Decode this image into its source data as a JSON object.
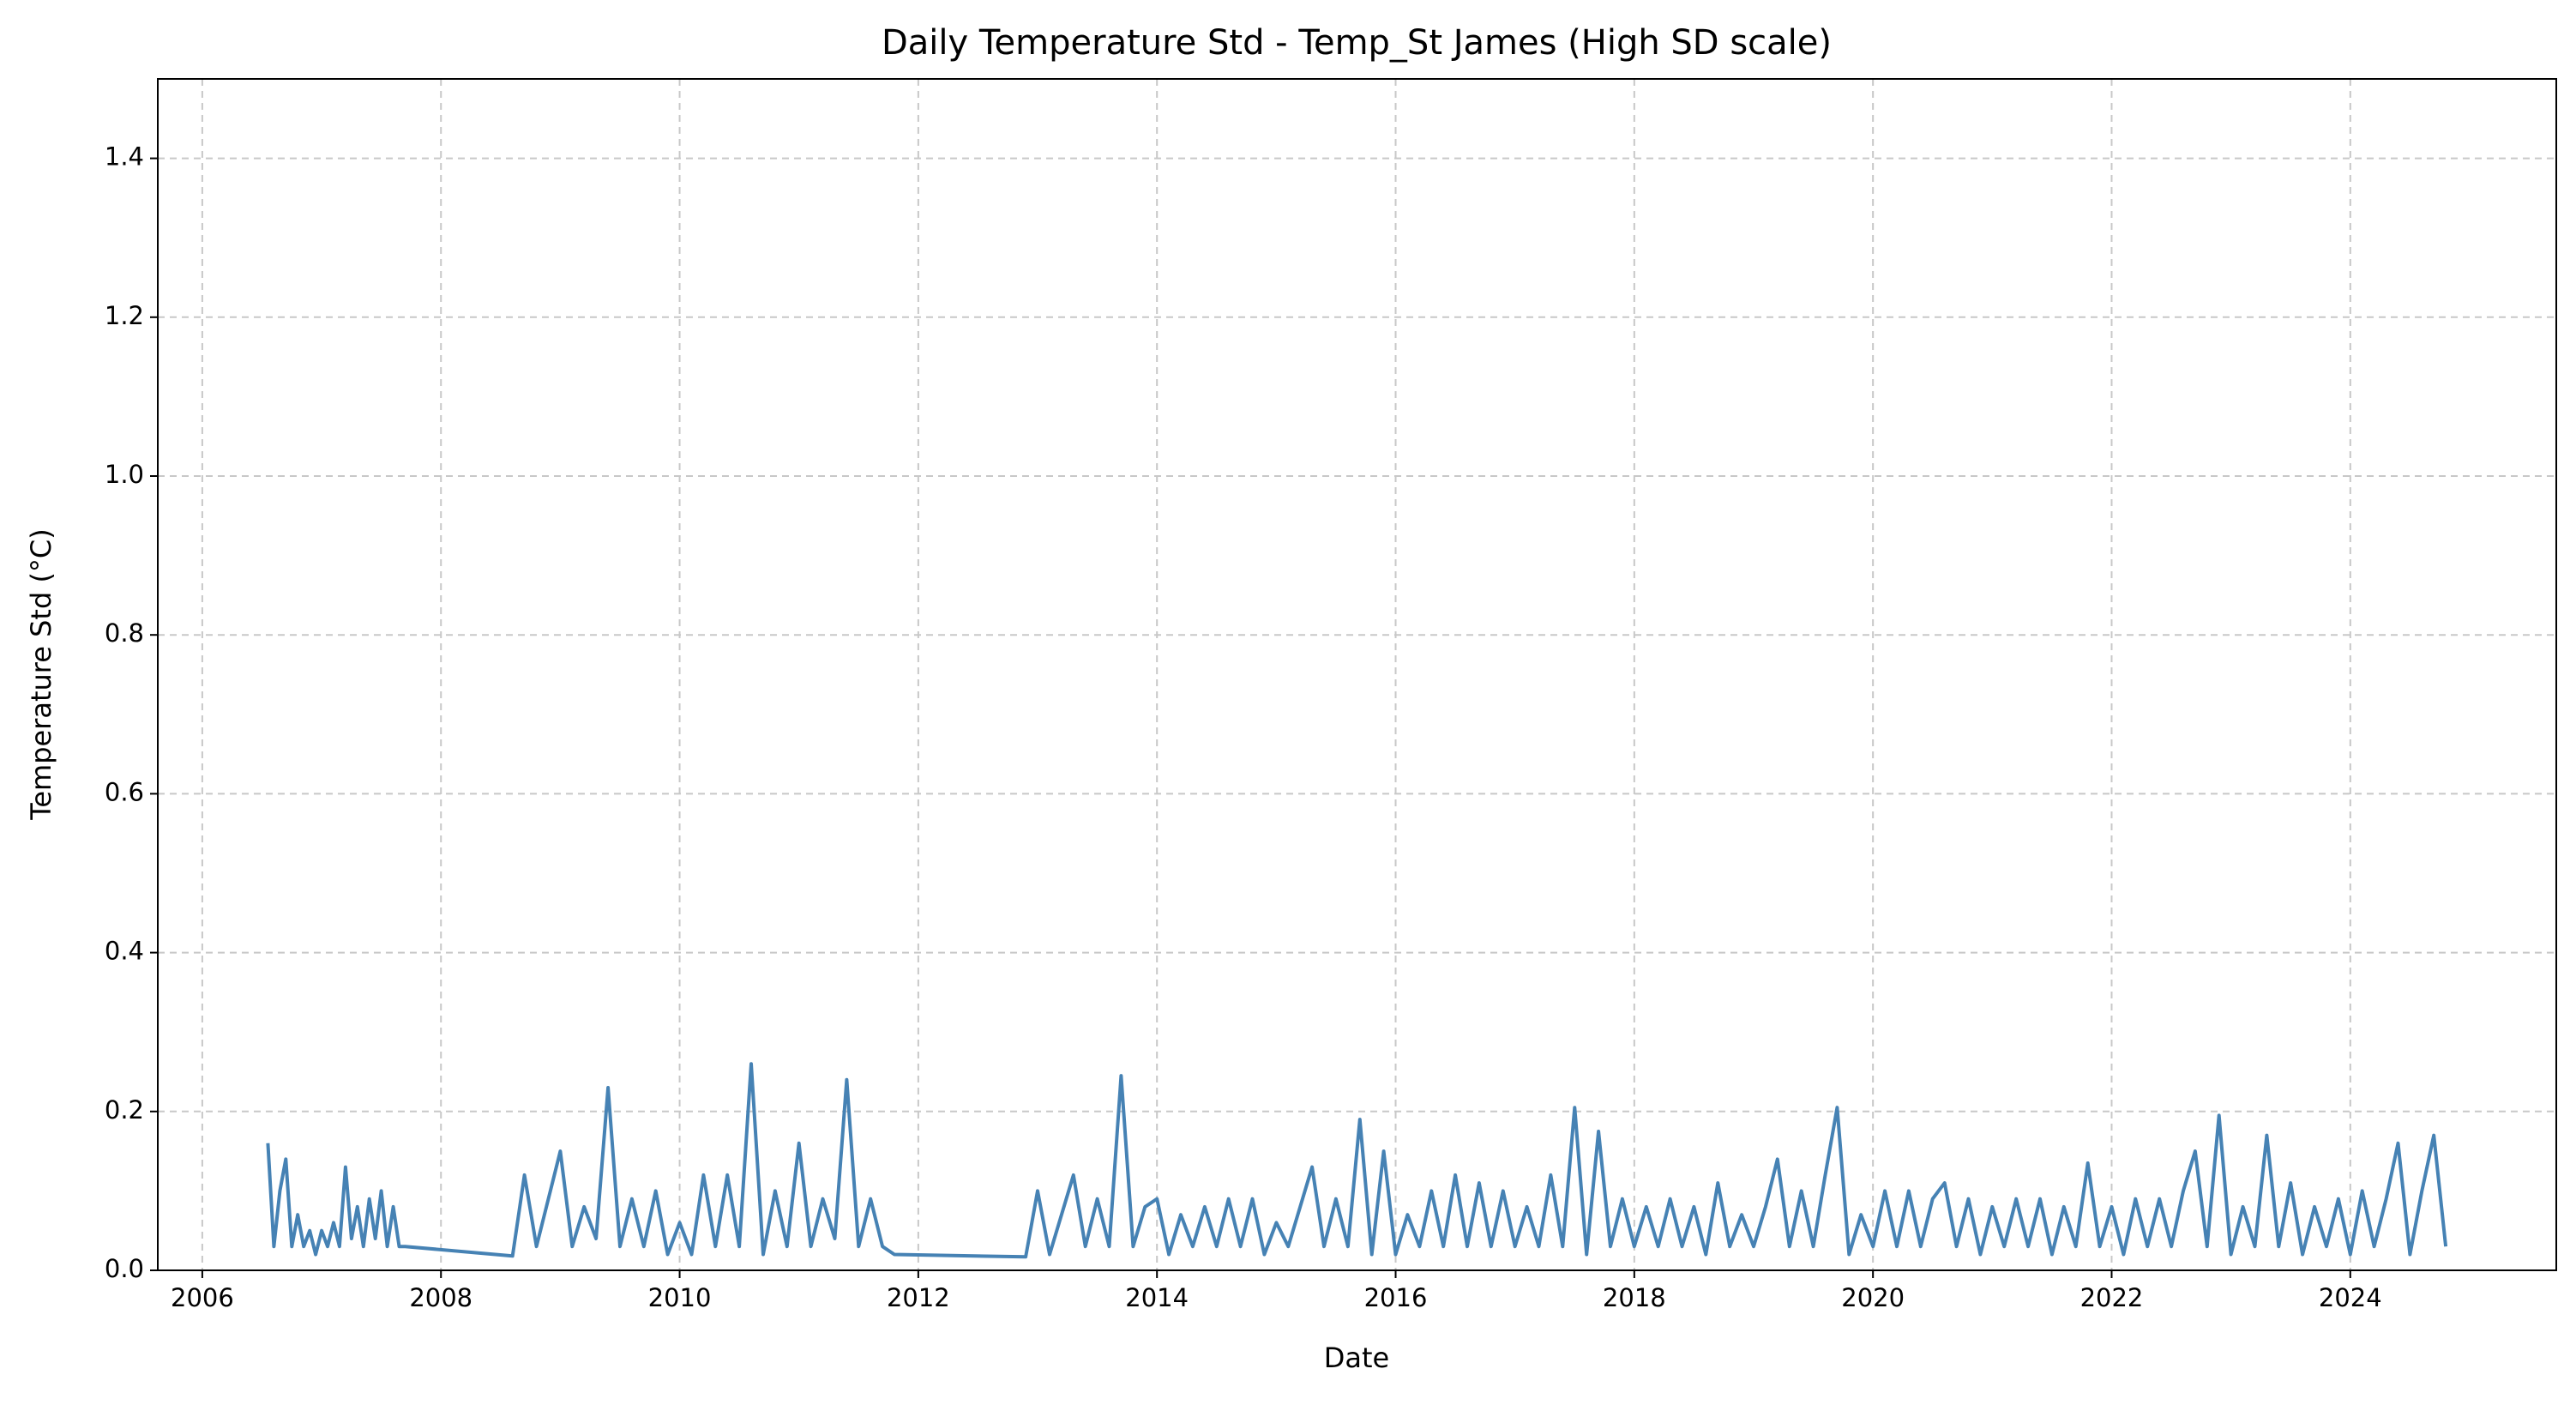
{
  "chart_data": {
    "type": "line",
    "title": "Daily Temperature Std - Temp_St James (High SD scale)",
    "x_label": "Date",
    "y_label": "Temperature Std (°C)",
    "color": "#4682b4",
    "grid": true,
    "xlim": [
      2005.627,
      2025.726
    ],
    "ylim": [
      0,
      1.5
    ],
    "xticks": [
      2006,
      2008,
      2010,
      2012,
      2014,
      2016,
      2018,
      2020,
      2022,
      2024
    ],
    "yticks": [
      {
        "value": 0,
        "label": "0.0"
      },
      0.2,
      0.4,
      0.6,
      0.8,
      {
        "value": 1,
        "label": "1.0"
      },
      1.2,
      1.4
    ],
    "x": [
      2006.55,
      2006.6,
      2006.65,
      2006.7,
      2006.75,
      2006.8,
      2006.85,
      2006.9,
      2006.95,
      2007.0,
      2007.05,
      2007.1,
      2007.15,
      2007.2,
      2007.25,
      2007.3,
      2007.35,
      2007.4,
      2007.45,
      2007.5,
      2007.55,
      2007.6,
      2007.65,
      2007.7,
      2008.6,
      2008.7,
      2008.8,
      2008.9,
      2009.0,
      2009.1,
      2009.2,
      2009.3,
      2009.4,
      2009.5,
      2009.6,
      2009.7,
      2009.8,
      2009.9,
      2010.0,
      2010.1,
      2010.2,
      2010.3,
      2010.4,
      2010.5,
      2010.6,
      2010.7,
      2010.8,
      2010.9,
      2011.0,
      2011.1,
      2011.2,
      2011.3,
      2011.4,
      2011.5,
      2011.6,
      2011.7,
      2011.8,
      2012.9,
      2013.0,
      2013.1,
      2013.2,
      2013.3,
      2013.4,
      2013.5,
      2013.6,
      2013.7,
      2013.8,
      2013.9,
      2014.0,
      2014.1,
      2014.2,
      2014.3,
      2014.4,
      2014.5,
      2014.6,
      2014.7,
      2014.8,
      2014.9,
      2015.0,
      2015.1,
      2015.2,
      2015.3,
      2015.4,
      2015.5,
      2015.6,
      2015.7,
      2015.8,
      2015.9,
      2016.0,
      2016.1,
      2016.2,
      2016.3,
      2016.4,
      2016.5,
      2016.6,
      2016.7,
      2016.8,
      2016.9,
      2017.0,
      2017.1,
      2017.2,
      2017.3,
      2017.4,
      2017.5,
      2017.6,
      2017.7,
      2017.8,
      2017.9,
      2018.0,
      2018.1,
      2018.2,
      2018.3,
      2018.4,
      2018.5,
      2018.6,
      2018.7,
      2018.8,
      2018.9,
      2019.0,
      2019.1,
      2019.2,
      2019.3,
      2019.4,
      2019.5,
      2019.6,
      2019.7,
      2019.8,
      2019.9,
      2020.0,
      2020.1,
      2020.2,
      2020.3,
      2020.4,
      2020.5,
      2020.6,
      2020.7,
      2020.8,
      2020.9,
      2021.0,
      2021.1,
      2021.2,
      2021.3,
      2021.4,
      2021.5,
      2021.6,
      2021.7,
      2021.8,
      2021.9,
      2022.0,
      2022.1,
      2022.2,
      2022.3,
      2022.4,
      2022.5,
      2022.6,
      2022.7,
      2022.8,
      2022.9,
      2023.0,
      2023.1,
      2023.2,
      2023.3,
      2023.4,
      2023.5,
      2023.6,
      2023.7,
      2023.8,
      2023.9,
      2024.0,
      2024.1,
      2024.2,
      2024.3,
      2024.4,
      2024.5,
      2024.6,
      2024.7,
      2024.8
    ],
    "values": [
      0.16,
      0.03,
      0.1,
      0.14,
      0.03,
      0.07,
      0.03,
      0.05,
      0.02,
      0.05,
      0.03,
      0.06,
      0.03,
      0.13,
      0.04,
      0.08,
      0.03,
      0.09,
      0.04,
      0.1,
      0.03,
      0.08,
      0.03,
      0.03,
      0.018,
      0.12,
      0.03,
      0.09,
      0.15,
      0.03,
      0.08,
      0.04,
      0.23,
      0.03,
      0.09,
      0.03,
      0.1,
      0.02,
      0.06,
      0.02,
      0.12,
      0.03,
      0.12,
      0.03,
      0.26,
      0.02,
      0.1,
      0.03,
      0.16,
      0.03,
      0.09,
      0.04,
      0.24,
      0.03,
      0.09,
      0.03,
      0.02,
      0.017,
      0.1,
      0.02,
      0.07,
      0.12,
      0.03,
      0.09,
      0.03,
      0.245,
      0.03,
      0.08,
      0.09,
      0.02,
      0.07,
      0.03,
      0.08,
      0.03,
      0.09,
      0.03,
      0.09,
      0.02,
      0.06,
      0.03,
      0.08,
      0.13,
      0.03,
      0.09,
      0.03,
      0.19,
      0.02,
      0.15,
      0.02,
      0.07,
      0.03,
      0.1,
      0.03,
      0.12,
      0.03,
      0.11,
      0.03,
      0.1,
      0.03,
      0.08,
      0.03,
      0.12,
      0.03,
      0.205,
      0.02,
      0.175,
      0.03,
      0.09,
      0.03,
      0.08,
      0.03,
      0.09,
      0.03,
      0.08,
      0.02,
      0.11,
      0.03,
      0.07,
      0.03,
      0.08,
      0.14,
      0.03,
      0.1,
      0.03,
      0.12,
      0.205,
      0.02,
      0.07,
      0.03,
      0.1,
      0.03,
      0.1,
      0.03,
      0.09,
      0.11,
      0.03,
      0.09,
      0.02,
      0.08,
      0.03,
      0.09,
      0.03,
      0.09,
      0.02,
      0.08,
      0.03,
      0.135,
      0.03,
      0.08,
      0.02,
      0.09,
      0.03,
      0.09,
      0.03,
      0.1,
      0.15,
      0.03,
      0.195,
      0.02,
      0.08,
      0.03,
      0.17,
      0.03,
      0.11,
      0.02,
      0.08,
      0.03,
      0.09,
      0.02,
      0.1,
      0.03,
      0.09,
      0.16,
      0.02,
      0.1,
      0.17,
      0.03
    ]
  }
}
